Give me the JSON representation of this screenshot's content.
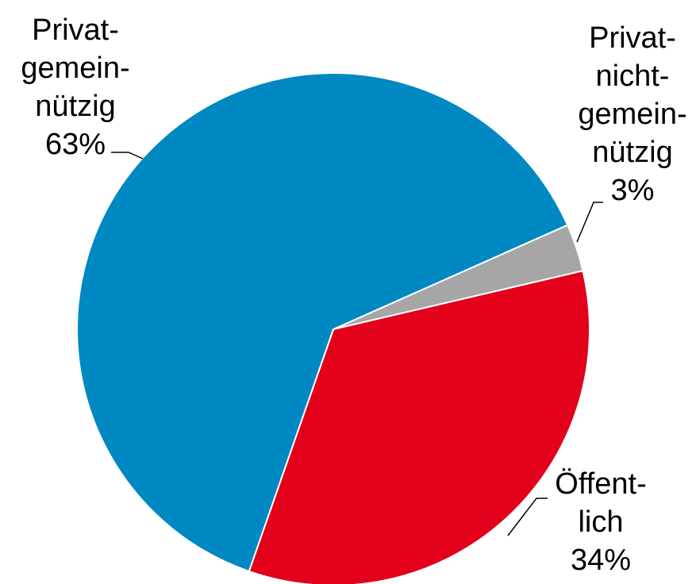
{
  "chart_data": {
    "type": "pie",
    "categories": [
      [
        "Privat-",
        "nicht-",
        "gemein-",
        "nützig"
      ],
      [
        "Öffent-",
        "lich"
      ],
      [
        "Privat-",
        "gemein-",
        "nützig"
      ]
    ],
    "values": [
      3,
      34,
      63
    ],
    "value_labels": [
      "3%",
      "34%",
      "63%"
    ],
    "colors": [
      "#a6a6a6",
      "#e2001a",
      "#0088c2"
    ]
  }
}
